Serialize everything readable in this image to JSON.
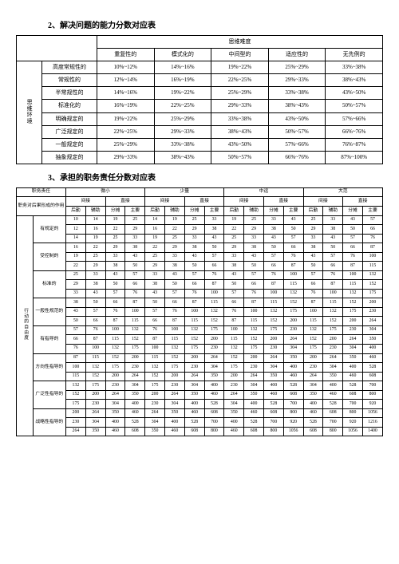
{
  "section2_title": "2、解决问题的能力分数对应表",
  "section3_title": "3、承担的职务责任分数对应表",
  "table1": {
    "corner_blank": "",
    "top_header": "思维难度",
    "cols": [
      "重复性的",
      "模式化的",
      "中间型的",
      "适应性的",
      "无先例的"
    ],
    "side_header": "思维环境",
    "rows": [
      {
        "label": "高度常规性的",
        "cells": [
          "10%~12%",
          "14%~16%",
          "19%~22%",
          "25%~29%",
          "33%~38%"
        ]
      },
      {
        "label": "常规性的",
        "cells": [
          "12%~14%",
          "16%~19%",
          "22%~25%",
          "29%~33%",
          "38%~43%"
        ]
      },
      {
        "label": "半常规性的",
        "cells": [
          "14%~16%",
          "19%~22%",
          "25%~29%",
          "33%~38%",
          "43%~50%"
        ]
      },
      {
        "label": "标准化的",
        "cells": [
          "16%~19%",
          "22%~25%",
          "29%~33%",
          "38%~43%",
          "50%~57%"
        ]
      },
      {
        "label": "明确规定的",
        "cells": [
          "19%~22%",
          "25%~29%",
          "33%~38%",
          "43%~50%",
          "57%~66%"
        ]
      },
      {
        "label": "广泛规定的",
        "cells": [
          "22%~25%",
          "29%~33%",
          "38%~43%",
          "50%~57%",
          "66%~76%"
        ]
      },
      {
        "label": "一般规定的",
        "cells": [
          "25%~29%",
          "33%~38%",
          "43%~50%",
          "57%~66%",
          "76%~87%"
        ]
      },
      {
        "label": "抽象规定的",
        "cells": [
          "29%~33%",
          "38%~43%",
          "50%~57%",
          "66%~76%",
          "87%~100%"
        ]
      }
    ]
  },
  "table2": {
    "header_top": "职务责任",
    "sizes": [
      "微小",
      "少量",
      "中运",
      "大范"
    ],
    "sub_ij": [
      "间接",
      "直接"
    ],
    "sub_leaf": [
      "后勤",
      "辅助",
      "分摊",
      "主要"
    ],
    "left_top": "职务对后果形成的作用",
    "side_header": "行动的自由度",
    "row_groups": [
      {
        "label": "有规定的",
        "rows": [
          [
            10,
            14,
            19,
            25,
            14,
            19,
            25,
            33,
            19,
            25,
            33,
            43,
            25,
            33,
            43,
            57
          ],
          [
            12,
            16,
            22,
            29,
            16,
            22,
            29,
            38,
            22,
            29,
            38,
            50,
            29,
            38,
            50,
            66
          ],
          [
            14,
            19,
            25,
            33,
            19,
            25,
            33,
            43,
            25,
            33,
            43,
            57,
            33,
            43,
            57,
            76
          ]
        ]
      },
      {
        "label": "受控制的",
        "rows": [
          [
            16,
            22,
            29,
            38,
            22,
            29,
            38,
            50,
            29,
            38,
            50,
            66,
            38,
            50,
            66,
            87
          ],
          [
            19,
            25,
            33,
            43,
            25,
            33,
            43,
            57,
            33,
            43,
            57,
            76,
            43,
            57,
            76,
            100
          ],
          [
            22,
            29,
            38,
            50,
            29,
            38,
            50,
            66,
            38,
            50,
            66,
            87,
            50,
            66,
            87,
            115
          ]
        ]
      },
      {
        "label": "标准的",
        "rows": [
          [
            25,
            33,
            43,
            57,
            33,
            43,
            57,
            76,
            43,
            57,
            76,
            100,
            57,
            76,
            100,
            132
          ],
          [
            29,
            38,
            50,
            66,
            38,
            50,
            66,
            87,
            50,
            66,
            87,
            115,
            66,
            87,
            115,
            152
          ],
          [
            33,
            43,
            57,
            76,
            43,
            57,
            76,
            100,
            57,
            76,
            100,
            132,
            76,
            100,
            132,
            175
          ]
        ]
      },
      {
        "label": "一般性规范的",
        "rows": [
          [
            38,
            50,
            66,
            87,
            50,
            66,
            87,
            115,
            66,
            87,
            115,
            152,
            87,
            115,
            152,
            200
          ],
          [
            43,
            57,
            76,
            100,
            57,
            76,
            100,
            132,
            76,
            100,
            132,
            175,
            100,
            132,
            175,
            230
          ],
          [
            50,
            66,
            87,
            115,
            66,
            87,
            115,
            152,
            87,
            115,
            152,
            200,
            115,
            152,
            200,
            264
          ]
        ]
      },
      {
        "label": "有指导的",
        "rows": [
          [
            57,
            76,
            100,
            132,
            76,
            100,
            132,
            175,
            100,
            132,
            175,
            230,
            132,
            175,
            230,
            304
          ],
          [
            66,
            87,
            115,
            152,
            87,
            115,
            152,
            200,
            115,
            152,
            200,
            264,
            152,
            200,
            264,
            350
          ],
          [
            76,
            100,
            132,
            175,
            100,
            132,
            175,
            230,
            132,
            175,
            230,
            304,
            175,
            230,
            304,
            400
          ]
        ]
      },
      {
        "label": "方向性指导的",
        "rows": [
          [
            87,
            115,
            152,
            200,
            115,
            152,
            200,
            264,
            152,
            200,
            264,
            350,
            200,
            264,
            350,
            460
          ],
          [
            100,
            132,
            175,
            230,
            132,
            175,
            230,
            304,
            175,
            230,
            304,
            400,
            230,
            304,
            400,
            528
          ],
          [
            115,
            152,
            200,
            264,
            152,
            200,
            264,
            350,
            200,
            264,
            350,
            460,
            264,
            350,
            460,
            608
          ]
        ]
      },
      {
        "label": "广泛性指导的",
        "rows": [
          [
            132,
            175,
            230,
            304,
            175,
            230,
            304,
            400,
            230,
            304,
            400,
            528,
            304,
            400,
            528,
            700
          ],
          [
            152,
            200,
            264,
            350,
            200,
            264,
            350,
            460,
            264,
            350,
            460,
            608,
            350,
            460,
            608,
            800
          ],
          [
            175,
            230,
            304,
            400,
            230,
            304,
            400,
            528,
            304,
            400,
            528,
            700,
            400,
            528,
            700,
            920
          ]
        ]
      },
      {
        "label": "战略性指导的",
        "rows": [
          [
            200,
            264,
            350,
            460,
            264,
            350,
            460,
            608,
            350,
            460,
            608,
            800,
            460,
            608,
            800,
            1056
          ],
          [
            230,
            304,
            400,
            528,
            304,
            400,
            528,
            700,
            400,
            528,
            700,
            920,
            528,
            700,
            920,
            1216
          ],
          [
            264,
            350,
            460,
            608,
            350,
            460,
            608,
            800,
            460,
            608,
            800,
            1056,
            608,
            800,
            1056,
            1400
          ]
        ]
      }
    ]
  }
}
